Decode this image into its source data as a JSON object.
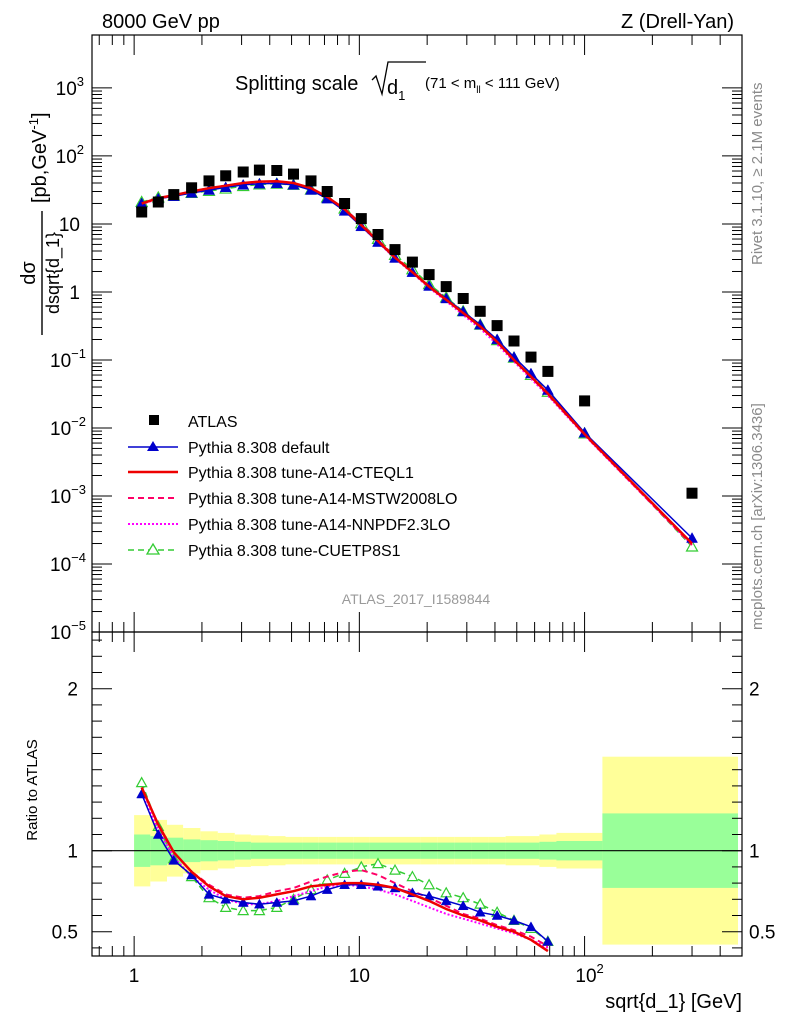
{
  "header": {
    "left": "8000 GeV pp",
    "right": "Z (Drell-Yan)"
  },
  "side_labels": {
    "rivet": "Rivet 3.1.10, ≥ 2.1M events",
    "mcplots": "mcplots.cern.ch [arXiv:1306.3436]"
  },
  "chart_data": [
    {
      "type": "scatter",
      "panel": "main",
      "title": "Splitting scale √d₁ (71 < m_ll < 111 GeV)",
      "title_parts": {
        "main": "Splitting scale ",
        "sym": "d",
        "sub": "1",
        "range_a": "(71 < m",
        "range_sub": "ll",
        "range_b": " < 111 GeV)"
      },
      "ylabel": "dσ/dsqrt{d_1} [pb,GeV⁻¹]",
      "ylabel_parts": {
        "num": "dσ",
        "den": "dsqrt{d_1}",
        "unit_a": "[pb,GeV",
        "unit_sup": "-1",
        "unit_b": "]"
      },
      "analysis_label": "ATLAS_2017_I1589844",
      "x_scale": "log",
      "y_scale": "log",
      "xlim": [
        0.65,
        500
      ],
      "ylim": [
        1e-05,
        6000
      ],
      "legend_position": "bottom-left",
      "ytick_labels": [
        {
          "value": 1000,
          "base": "10",
          "exp": "3"
        },
        {
          "value": 100,
          "base": "10",
          "exp": "2"
        },
        {
          "value": 10,
          "base": "10",
          "exp": ""
        },
        {
          "value": 1,
          "base": "1",
          "exp": ""
        },
        {
          "value": 0.1,
          "base": "10",
          "exp": "−1"
        },
        {
          "value": 0.01,
          "base": "10",
          "exp": "−2"
        },
        {
          "value": 0.001,
          "base": "10",
          "exp": "−3"
        },
        {
          "value": 0.0001,
          "base": "10",
          "exp": "−4"
        },
        {
          "value": 1e-05,
          "base": "10",
          "exp": "−5"
        }
      ],
      "x": [
        1.08,
        1.28,
        1.5,
        1.8,
        2.15,
        2.55,
        3.05,
        3.6,
        4.3,
        5.1,
        6.1,
        7.2,
        8.6,
        10.2,
        12.1,
        14.4,
        17.2,
        20.4,
        24.3,
        28.9,
        34.4,
        40.9,
        48.6,
        57.8,
        68.7,
        100,
        300
      ],
      "series": [
        {
          "name": "ATLAS",
          "style": "data",
          "color": "#000000",
          "values": [
            15,
            21,
            27,
            34,
            43,
            51,
            58,
            62,
            61,
            54,
            43,
            30,
            20,
            12,
            7.0,
            4.2,
            2.75,
            1.8,
            1.2,
            0.8,
            0.52,
            0.32,
            0.19,
            0.11,
            0.068,
            0.025,
            0.0011
          ]
        },
        {
          "name": "Pythia 8.308 default",
          "style": "solid-triangle",
          "color": "#0000cc",
          "values": [
            20,
            23.5,
            25.5,
            28.5,
            31.5,
            34.5,
            37.5,
            39,
            39.5,
            37.5,
            31.5,
            23.5,
            15.5,
            9.2,
            5.4,
            3.15,
            1.95,
            1.22,
            0.8,
            0.515,
            0.33,
            0.2,
            0.11,
            0.063,
            0.036,
            0.0085,
            0.00024
          ]
        },
        {
          "name": "Pythia 8.308 tune-A14-CTEQL1",
          "style": "solid",
          "color": "#ee0000",
          "values": [
            20,
            24,
            26.5,
            30,
            33.5,
            36.5,
            40,
            42,
            42.5,
            40,
            33.5,
            25,
            16.5,
            9.6,
            5.6,
            3.2,
            1.95,
            1.2,
            0.77,
            0.49,
            0.31,
            0.185,
            0.1,
            0.057,
            0.032,
            0.0081,
            0.0002
          ]
        },
        {
          "name": "Pythia 8.308 tune-A14-MSTW2008LO",
          "style": "dashed",
          "color": "#ff0066",
          "values": [
            20,
            24,
            26.5,
            30,
            33.5,
            36.5,
            40,
            42,
            42.5,
            40,
            33.5,
            25,
            16.8,
            9.9,
            5.8,
            3.3,
            2.0,
            1.22,
            0.78,
            0.49,
            0.31,
            0.185,
            0.1,
            0.056,
            0.031,
            0.0079,
            0.00019
          ]
        },
        {
          "name": "Pythia 8.308 tune-A14-NNPDF2.3LO",
          "style": "dotted",
          "color": "#ff00ff",
          "values": [
            19.5,
            23.5,
            26,
            29.5,
            33,
            36,
            39,
            41,
            41.5,
            39,
            32.5,
            24,
            15.8,
            9.3,
            5.4,
            3.1,
            1.9,
            1.15,
            0.73,
            0.46,
            0.29,
            0.17,
            0.095,
            0.053,
            0.03,
            0.0078,
            0.00019
          ]
        },
        {
          "name": "Pythia 8.308 tune-CUETP8S1",
          "style": "dashed-open-triangle",
          "color": "#33cc33",
          "values": [
            21,
            24.5,
            26,
            28.5,
            30.5,
            33,
            36,
            38,
            39,
            37.5,
            32,
            24.5,
            16.8,
            10.2,
            6.0,
            3.5,
            2.15,
            1.3,
            0.83,
            0.52,
            0.33,
            0.195,
            0.108,
            0.06,
            0.034,
            0.0083,
            0.00018
          ]
        }
      ]
    },
    {
      "type": "line",
      "panel": "ratio",
      "ylabel": "Ratio to ATLAS",
      "xlabel": "sqrt{d_1} [GeV]",
      "x_scale": "log",
      "xlim": [
        0.65,
        500
      ],
      "ylim": [
        0.35,
        2.35
      ],
      "reference_line": 1,
      "ytick_labels": [
        "0.5",
        "1",
        "2"
      ],
      "xtick_labels": [
        {
          "value": 1,
          "base": "1",
          "exp": ""
        },
        {
          "value": 10,
          "base": "10",
          "exp": ""
        },
        {
          "value": 100,
          "base": "10",
          "exp": "2"
        }
      ],
      "uncertainty_bands": {
        "inner_color": "#99ff99",
        "outer_color": "#ffff99",
        "bin_edges": [
          1.0,
          1.18,
          1.4,
          1.65,
          1.97,
          2.35,
          2.8,
          3.3,
          3.95,
          4.7,
          5.6,
          6.6,
          7.9,
          9.4,
          11.1,
          13.2,
          15.7,
          18.7,
          22.3,
          26.5,
          31.5,
          37.5,
          44.6,
          53,
          63,
          75,
          120,
          480
        ],
        "inner_half_width": [
          0.1,
          0.09,
          0.08,
          0.07,
          0.065,
          0.06,
          0.055,
          0.05,
          0.05,
          0.05,
          0.05,
          0.05,
          0.05,
          0.05,
          0.05,
          0.05,
          0.05,
          0.05,
          0.05,
          0.05,
          0.05,
          0.05,
          0.05,
          0.05,
          0.055,
          0.06,
          0.23
        ],
        "outer_half_width": [
          0.22,
          0.19,
          0.16,
          0.14,
          0.12,
          0.11,
          0.1,
          0.095,
          0.09,
          0.085,
          0.085,
          0.085,
          0.085,
          0.085,
          0.085,
          0.085,
          0.085,
          0.085,
          0.085,
          0.085,
          0.085,
          0.085,
          0.09,
          0.09,
          0.1,
          0.11,
          0.58
        ]
      },
      "x": [
        1.08,
        1.28,
        1.5,
        1.8,
        2.15,
        2.55,
        3.05,
        3.6,
        4.3,
        5.1,
        6.1,
        7.2,
        8.6,
        10.2,
        12.1,
        14.4,
        17.2,
        20.4,
        24.3,
        28.9,
        34.4,
        40.9,
        48.6,
        57.8,
        68.7
      ],
      "series": [
        {
          "name": "Pythia 8.308 default",
          "style": "solid-triangle",
          "color": "#0000cc",
          "values": [
            1.35,
            1.1,
            0.94,
            0.85,
            0.73,
            0.7,
            0.68,
            0.67,
            0.68,
            0.69,
            0.72,
            0.76,
            0.79,
            0.79,
            0.78,
            0.77,
            0.74,
            0.72,
            0.69,
            0.66,
            0.62,
            0.6,
            0.57,
            0.53,
            0.44
          ]
        },
        {
          "name": "Pythia 8.308 tune-A14-CTEQL1",
          "style": "solid",
          "color": "#ee0000",
          "values": [
            1.39,
            1.16,
            0.99,
            0.87,
            0.78,
            0.72,
            0.7,
            0.71,
            0.73,
            0.75,
            0.78,
            0.79,
            0.8,
            0.8,
            0.79,
            0.77,
            0.73,
            0.69,
            0.64,
            0.6,
            0.57,
            0.53,
            0.5,
            0.45,
            0.38
          ]
        },
        {
          "name": "Pythia 8.308 tune-A14-MSTW2008LO",
          "style": "dashed",
          "color": "#ff0066",
          "values": [
            1.39,
            1.16,
            0.99,
            0.87,
            0.79,
            0.73,
            0.71,
            0.72,
            0.75,
            0.77,
            0.81,
            0.84,
            0.87,
            0.88,
            0.85,
            0.8,
            0.75,
            0.71,
            0.66,
            0.61,
            0.58,
            0.54,
            0.51,
            0.47,
            0.41
          ]
        },
        {
          "name": "Pythia 8.308 tune-A14-NNPDF2.3LO",
          "style": "dotted",
          "color": "#ff00ff",
          "values": [
            1.35,
            1.13,
            0.96,
            0.84,
            0.76,
            0.7,
            0.67,
            0.67,
            0.69,
            0.72,
            0.75,
            0.78,
            0.79,
            0.78,
            0.76,
            0.73,
            0.69,
            0.65,
            0.61,
            0.58,
            0.55,
            0.52,
            0.49,
            0.45,
            0.4
          ]
        },
        {
          "name": "Pythia 8.308 tune-CUETP8S1",
          "style": "dashed-open-triangle",
          "color": "#33cc33",
          "values": [
            1.42,
            1.15,
            0.95,
            0.84,
            0.71,
            0.65,
            0.63,
            0.63,
            0.65,
            0.7,
            0.76,
            0.82,
            0.86,
            0.9,
            0.92,
            0.88,
            0.84,
            0.79,
            0.74,
            0.71,
            0.67,
            0.62,
            0.57,
            0.52,
            0.44
          ]
        }
      ]
    }
  ]
}
